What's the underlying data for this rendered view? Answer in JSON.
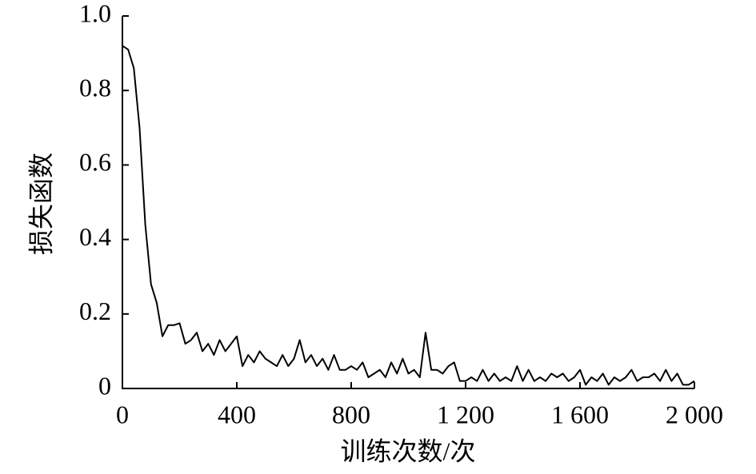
{
  "chart_data": {
    "type": "line",
    "x_label": "训练次数/次",
    "y_label": "损失函数",
    "x": [
      0,
      20,
      40,
      60,
      80,
      100,
      120,
      140,
      160,
      180,
      200,
      220,
      240,
      260,
      280,
      300,
      320,
      340,
      360,
      380,
      400,
      420,
      440,
      460,
      480,
      500,
      520,
      540,
      560,
      580,
      600,
      620,
      640,
      660,
      680,
      700,
      720,
      740,
      760,
      780,
      800,
      820,
      840,
      860,
      880,
      900,
      920,
      940,
      960,
      980,
      1000,
      1020,
      1040,
      1060,
      1080,
      1100,
      1120,
      1140,
      1160,
      1180,
      1200,
      1220,
      1240,
      1260,
      1280,
      1300,
      1320,
      1340,
      1360,
      1380,
      1400,
      1420,
      1440,
      1460,
      1480,
      1500,
      1520,
      1540,
      1560,
      1580,
      1600,
      1620,
      1640,
      1660,
      1680,
      1700,
      1720,
      1740,
      1760,
      1780,
      1800,
      1820,
      1840,
      1860,
      1880,
      1900,
      1920,
      1940,
      1960,
      1980,
      2000
    ],
    "values": [
      0.92,
      0.91,
      0.86,
      0.7,
      0.44,
      0.28,
      0.23,
      0.14,
      0.17,
      0.17,
      0.175,
      0.12,
      0.13,
      0.15,
      0.1,
      0.12,
      0.09,
      0.13,
      0.1,
      0.12,
      0.14,
      0.06,
      0.09,
      0.07,
      0.1,
      0.08,
      0.07,
      0.06,
      0.09,
      0.06,
      0.08,
      0.13,
      0.07,
      0.09,
      0.06,
      0.08,
      0.05,
      0.09,
      0.05,
      0.05,
      0.06,
      0.05,
      0.07,
      0.03,
      0.04,
      0.05,
      0.03,
      0.07,
      0.04,
      0.08,
      0.04,
      0.05,
      0.03,
      0.15,
      0.05,
      0.05,
      0.04,
      0.06,
      0.07,
      0.02,
      0.02,
      0.03,
      0.02,
      0.05,
      0.02,
      0.04,
      0.02,
      0.03,
      0.02,
      0.06,
      0.02,
      0.05,
      0.02,
      0.03,
      0.02,
      0.04,
      0.03,
      0.04,
      0.02,
      0.03,
      0.05,
      0.01,
      0.03,
      0.02,
      0.04,
      0.01,
      0.03,
      0.02,
      0.03,
      0.05,
      0.02,
      0.03,
      0.03,
      0.04,
      0.02,
      0.05,
      0.02,
      0.04,
      0.01,
      0.01,
      0.02
    ],
    "color": "#000000",
    "xlim": [
      0,
      2000
    ],
    "xticks": [
      0,
      400,
      800,
      {
        "value": 1200,
        "label": "1 200"
      },
      {
        "value": 1600,
        "label": "1 600"
      },
      {
        "value": 2000,
        "label": "2 000"
      }
    ],
    "ylim": [
      0,
      1
    ],
    "yticks": [
      0,
      0.2,
      0.4,
      0.6,
      0.8,
      {
        "value": 1,
        "label": "1.0"
      }
    ],
    "grid": false
  }
}
